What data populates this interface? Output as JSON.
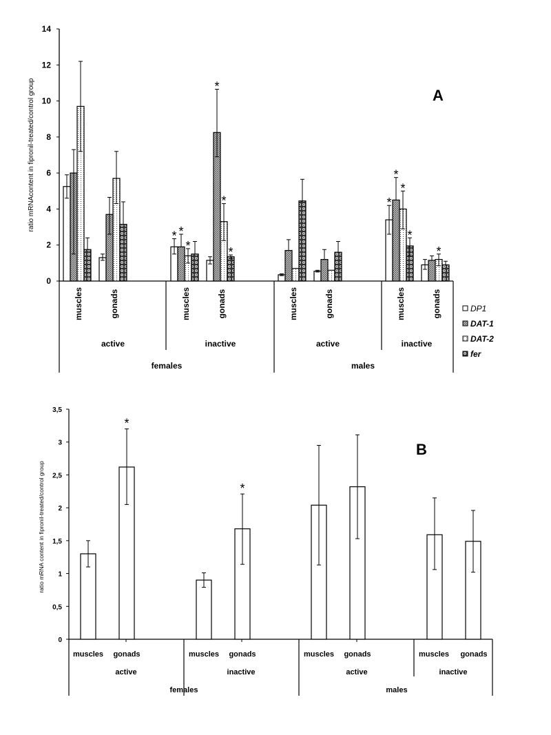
{
  "chart_data": [
    {
      "type": "bar",
      "panel_label": "A",
      "ylabel": "ratio mRNAcontent in fipronil-treated/control group",
      "ylim": [
        0,
        14
      ],
      "yticks": [
        0,
        2,
        4,
        6,
        8,
        10,
        12,
        14
      ],
      "ytick_labels": [
        "0",
        "2",
        "4",
        "6",
        "8",
        "10",
        "12",
        "14"
      ],
      "legend_position": "right",
      "categories": [
        {
          "tissue": "muscles",
          "activity": "active",
          "sex": "females"
        },
        {
          "tissue": "gonads",
          "activity": "active",
          "sex": "females"
        },
        {
          "tissue": "muscles",
          "activity": "inactive",
          "sex": "females"
        },
        {
          "tissue": "gonads",
          "activity": "inactive",
          "sex": "females"
        },
        {
          "tissue": "muscles",
          "activity": "active",
          "sex": "males"
        },
        {
          "tissue": "gonads",
          "activity": "active",
          "sex": "males"
        },
        {
          "tissue": "muscles",
          "activity": "inactive",
          "sex": "males"
        },
        {
          "tissue": "gonads",
          "activity": "inactive",
          "sex": "males"
        }
      ],
      "activity_groups": [
        "active",
        "inactive",
        "active",
        "inactive"
      ],
      "sex_groups": [
        "females",
        "males"
      ],
      "series": [
        {
          "name": "DP1",
          "pattern": "white",
          "values": [
            5.25,
            1.3,
            1.9,
            1.15,
            0.35,
            0.55,
            3.4,
            0.9
          ],
          "err_low": [
            4.6,
            1.15,
            1.5,
            0.95,
            0.3,
            0.5,
            2.6,
            0.65
          ],
          "err_high": [
            5.9,
            1.5,
            2.35,
            1.35,
            0.4,
            0.6,
            4.2,
            1.2
          ],
          "significant": [
            false,
            false,
            true,
            false,
            false,
            false,
            true,
            false
          ]
        },
        {
          "name": "DAT-1",
          "pattern": "grey",
          "values": [
            6.0,
            3.7,
            1.9,
            8.25,
            1.7,
            1.2,
            4.5,
            1.15
          ],
          "err_low": [
            1.5,
            2.6,
            1.9,
            6.9,
            1.7,
            1.2,
            4.5,
            1.15
          ],
          "err_high": [
            7.3,
            4.65,
            2.6,
            10.65,
            2.3,
            1.75,
            5.75,
            1.4
          ],
          "significant": [
            false,
            false,
            true,
            true,
            false,
            false,
            true,
            false
          ]
        },
        {
          "name": "DAT-2",
          "pattern": "dotted",
          "values": [
            9.7,
            5.7,
            1.4,
            3.3,
            0.7,
            0.6,
            4.0,
            1.2
          ],
          "err_low": [
            7.2,
            4.3,
            1.0,
            2.25,
            0.7,
            0.6,
            2.9,
            0.85
          ],
          "err_high": [
            12.2,
            7.2,
            1.8,
            4.3,
            0.7,
            0.6,
            5.0,
            1.5
          ],
          "significant": [
            false,
            false,
            true,
            true,
            false,
            false,
            true,
            true
          ]
        },
        {
          "name": "fer",
          "pattern": "circles",
          "values": [
            1.75,
            3.15,
            1.5,
            1.35,
            4.45,
            1.6,
            1.95,
            0.9
          ],
          "err_low": [
            1.75,
            3.15,
            1.5,
            1.25,
            4.45,
            1.6,
            1.4,
            0.9
          ],
          "err_high": [
            2.4,
            4.4,
            2.2,
            1.45,
            5.65,
            2.2,
            2.4,
            1.1
          ],
          "significant": [
            false,
            false,
            false,
            true,
            false,
            false,
            true,
            false
          ]
        }
      ],
      "significance_marker": "*"
    },
    {
      "type": "bar",
      "panel_label": "B",
      "ylabel": "ratio mRNA content in fipronil-treated/control group",
      "ylim": [
        0,
        3.5
      ],
      "yticks": [
        0,
        0.5,
        1,
        1.5,
        2,
        2.5,
        3,
        3.5
      ],
      "ytick_labels": [
        "0",
        "0,5",
        "1",
        "1,5",
        "2",
        "2,5",
        "3",
        "3,5"
      ],
      "categories": [
        {
          "tissue": "muscles",
          "activity": "active",
          "sex": "females"
        },
        {
          "tissue": "gonads",
          "activity": "active",
          "sex": "females"
        },
        {
          "tissue": "muscles",
          "activity": "inactive",
          "sex": "females"
        },
        {
          "tissue": "gonads",
          "activity": "inactive",
          "sex": "females"
        },
        {
          "tissue": "muscles",
          "activity": "active",
          "sex": "males"
        },
        {
          "tissue": "gonads",
          "activity": "active",
          "sex": "males"
        },
        {
          "tissue": "muscles",
          "activity": "inactive",
          "sex": "males"
        },
        {
          "tissue": "gonads",
          "activity": "inactive",
          "sex": "males"
        }
      ],
      "activity_groups": [
        "active",
        "inactive",
        "active",
        "inactive"
      ],
      "sex_groups": [
        "females",
        "males"
      ],
      "values": [
        1.3,
        2.62,
        0.9,
        1.68,
        2.04,
        2.32,
        1.59,
        1.49
      ],
      "err_low": [
        1.1,
        2.05,
        0.79,
        1.14,
        1.13,
        1.53,
        1.06,
        1.02
      ],
      "err_high": [
        1.5,
        3.2,
        1.01,
        2.21,
        2.95,
        3.11,
        2.15,
        1.96
      ],
      "significant": [
        false,
        true,
        false,
        true,
        false,
        false,
        false,
        false
      ],
      "significance_marker": "*"
    }
  ]
}
